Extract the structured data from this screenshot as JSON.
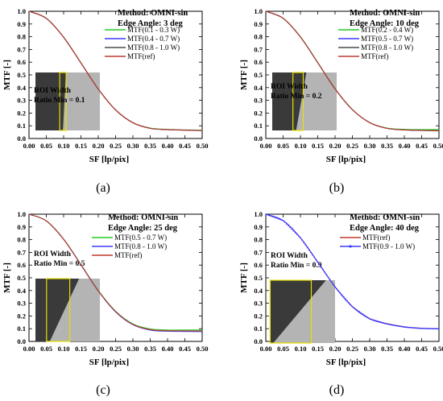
{
  "chart_data": [
    {
      "id": "a",
      "type": "line",
      "subfigure_label": "(a)",
      "xlabel": "SF [lp/pix]",
      "ylabel": "MTF [-]",
      "xlim": [
        0,
        0.5
      ],
      "ylim": [
        0,
        1.0
      ],
      "xticks": [
        "0.00",
        "0.05",
        "0.10",
        "0.15",
        "0.20",
        "0.25",
        "0.30",
        "0.35",
        "0.40",
        "0.45",
        "0.50"
      ],
      "yticks": [
        "0.0",
        "0.1",
        "0.2",
        "0.3",
        "0.4",
        "0.5",
        "0.6",
        "0.7",
        "0.8",
        "0.9",
        "1.0"
      ],
      "grid": false,
      "method": "Method: OMNI-sin",
      "edge_angle": "Edge Angle: 3 deg",
      "roi_width_label": "ROI Width",
      "ratio_min": "Ratio Min = 0.1",
      "edge_angle_deg": 3,
      "roi_window": [
        0.1,
        0.12
      ],
      "legend_position": "top-right",
      "x": [
        0.0,
        0.05,
        0.1,
        0.15,
        0.2,
        0.25,
        0.3,
        0.35,
        0.4,
        0.45,
        0.5
      ],
      "series": [
        {
          "name": "MTF(0.1 - 0.3 W)",
          "color": "#22cc22",
          "marker": "none",
          "values": [
            1.0,
            0.945,
            0.797,
            0.595,
            0.39,
            0.226,
            0.125,
            0.082,
            0.072,
            0.068,
            0.065
          ]
        },
        {
          "name": "MTF(0.4 - 0.7 W)",
          "color": "#3b3bff",
          "marker": "none",
          "values": [
            1.0,
            0.944,
            0.796,
            0.594,
            0.389,
            0.225,
            0.124,
            0.08,
            0.07,
            0.066,
            0.063
          ]
        },
        {
          "name": "MTF(0.8 - 1.0 W)",
          "color": "#4d4d4d",
          "marker": "none",
          "values": [
            1.0,
            0.944,
            0.795,
            0.593,
            0.388,
            0.224,
            0.123,
            0.079,
            0.069,
            0.065,
            0.062
          ]
        },
        {
          "name": "MTF(ref)",
          "color": "#c0392b",
          "marker": "none",
          "values": [
            1.0,
            0.944,
            0.795,
            0.594,
            0.389,
            0.225,
            0.124,
            0.08,
            0.07,
            0.066,
            0.063
          ]
        }
      ]
    },
    {
      "id": "b",
      "type": "line",
      "subfigure_label": "(b)",
      "xlabel": "SF [lp/pix]",
      "ylabel": "MTF [-]",
      "xlim": [
        0,
        0.5
      ],
      "ylim": [
        0,
        1.0
      ],
      "xticks": [
        "0.00",
        "0.05",
        "0.10",
        "0.15",
        "0.20",
        "0.25",
        "0.30",
        "0.35",
        "0.40",
        "0.45",
        "0.50"
      ],
      "yticks": [
        "0.0",
        "0.1",
        "0.2",
        "0.3",
        "0.4",
        "0.5",
        "0.6",
        "0.7",
        "0.8",
        "0.9",
        "1.0"
      ],
      "grid": false,
      "method": "Method: OMNI-sin",
      "edge_angle": "Edge Angle: 10 deg",
      "roi_width_label": "ROI Width",
      "ratio_min": "Ratio Min = 0.2",
      "edge_angle_deg": 10,
      "roi_window": [
        0.1,
        0.14
      ],
      "legend_position": "top-right",
      "x": [
        0.0,
        0.05,
        0.1,
        0.15,
        0.2,
        0.25,
        0.3,
        0.35,
        0.4,
        0.45,
        0.5
      ],
      "series": [
        {
          "name": "MTF(0.2 - 0.4 W)",
          "color": "#22cc22",
          "marker": "none",
          "values": [
            1.0,
            0.946,
            0.8,
            0.598,
            0.392,
            0.228,
            0.126,
            0.082,
            0.072,
            0.07,
            0.07
          ]
        },
        {
          "name": "MTF(0.5 - 0.7 W)",
          "color": "#3b3bff",
          "marker": "none",
          "values": [
            1.0,
            0.945,
            0.798,
            0.596,
            0.39,
            0.227,
            0.125,
            0.08,
            0.068,
            0.064,
            0.062
          ]
        },
        {
          "name": "MTF(0.8 - 1.0 W)",
          "color": "#4d4d4d",
          "marker": "none",
          "values": [
            1.0,
            0.944,
            0.797,
            0.595,
            0.389,
            0.226,
            0.124,
            0.079,
            0.067,
            0.063,
            0.06
          ]
        },
        {
          "name": "MTF(ref)",
          "color": "#c0392b",
          "marker": "none",
          "values": [
            1.0,
            0.945,
            0.798,
            0.596,
            0.39,
            0.226,
            0.125,
            0.08,
            0.068,
            0.064,
            0.062
          ]
        }
      ]
    },
    {
      "id": "c",
      "type": "line",
      "subfigure_label": "(c)",
      "xlabel": "SF [lp/pix]",
      "ylabel": "MTF [-]",
      "xlim": [
        0,
        0.5
      ],
      "ylim": [
        0,
        1.0
      ],
      "xticks": [
        "0.00",
        "0.05",
        "0.10",
        "0.15",
        "0.20",
        "0.25",
        "0.30",
        "0.35",
        "0.40",
        "0.45",
        "0.50"
      ],
      "yticks": [
        "0.0",
        "0.1",
        "0.2",
        "0.3",
        "0.4",
        "0.5",
        "0.6",
        "0.7",
        "0.8",
        "0.9",
        "1.0"
      ],
      "grid": false,
      "method": "Method: OMNI-sin",
      "edge_angle": "Edge Angle: 25 deg",
      "roi_width_label": "ROI Width",
      "ratio_min": "Ratio Min = 0.5",
      "edge_angle_deg": 25,
      "roi_window": [
        0.06,
        0.15
      ],
      "legend_position": "top-right",
      "x": [
        0.0,
        0.05,
        0.1,
        0.15,
        0.2,
        0.25,
        0.3,
        0.35,
        0.4,
        0.45,
        0.5
      ],
      "series": [
        {
          "name": "MTF(0.5 - 0.7 W)",
          "color": "#22cc22",
          "marker": "none",
          "values": [
            1.0,
            0.948,
            0.805,
            0.605,
            0.401,
            0.238,
            0.138,
            0.098,
            0.09,
            0.09,
            0.09
          ]
        },
        {
          "name": "MTF(0.8 - 1.0 W)",
          "color": "#3b3bff",
          "marker": "none",
          "values": [
            1.0,
            0.947,
            0.802,
            0.601,
            0.396,
            0.232,
            0.131,
            0.089,
            0.08,
            0.078,
            0.077
          ]
        },
        {
          "name": "MTF(ref)",
          "color": "#c0392b",
          "marker": "none",
          "values": [
            1.0,
            0.947,
            0.803,
            0.603,
            0.398,
            0.235,
            0.134,
            0.093,
            0.084,
            0.083,
            0.082
          ]
        }
      ]
    },
    {
      "id": "d",
      "type": "line",
      "subfigure_label": "(d)",
      "xlabel": "SF [lp/pix]",
      "ylabel": "MTF [-]",
      "xlim": [
        0,
        0.5
      ],
      "ylim": [
        0,
        1.0
      ],
      "xticks": [
        "0.00",
        "0.05",
        "0.10",
        "0.15",
        "0.20",
        "0.25",
        "0.30",
        "0.35",
        "0.40",
        "0.45",
        "0.50"
      ],
      "yticks": [
        "0.0",
        "0.1",
        "0.2",
        "0.3",
        "0.4",
        "0.5",
        "0.6",
        "0.7",
        "0.8",
        "0.9",
        "1.0"
      ],
      "grid": false,
      "method": "Method: OMNI-sin",
      "edge_angle": "Edge Angle: 40 deg",
      "roi_width_label": "ROI Width",
      "ratio_min": "Ratio Min = 0.9",
      "edge_angle_deg": 40,
      "roi_window": [
        0.01,
        0.17
      ],
      "legend_position": "top-right",
      "x": [
        0.0,
        0.05,
        0.1,
        0.15,
        0.2,
        0.25,
        0.3,
        0.35,
        0.4,
        0.45,
        0.5
      ],
      "series": [
        {
          "name": "MTF(ref)",
          "color": "#c0392b",
          "marker": "none",
          "values": [
            1.0,
            0.95,
            0.815,
            0.625,
            0.43,
            0.275,
            0.18,
            0.14,
            0.115,
            0.103,
            0.1
          ]
        },
        {
          "name": "MTF(0.9 - 1.0 W)",
          "color": "#3b3bff",
          "marker": "dot",
          "values": [
            1.0,
            0.95,
            0.814,
            0.623,
            0.428,
            0.272,
            0.177,
            0.137,
            0.113,
            0.102,
            0.099
          ]
        }
      ]
    }
  ]
}
